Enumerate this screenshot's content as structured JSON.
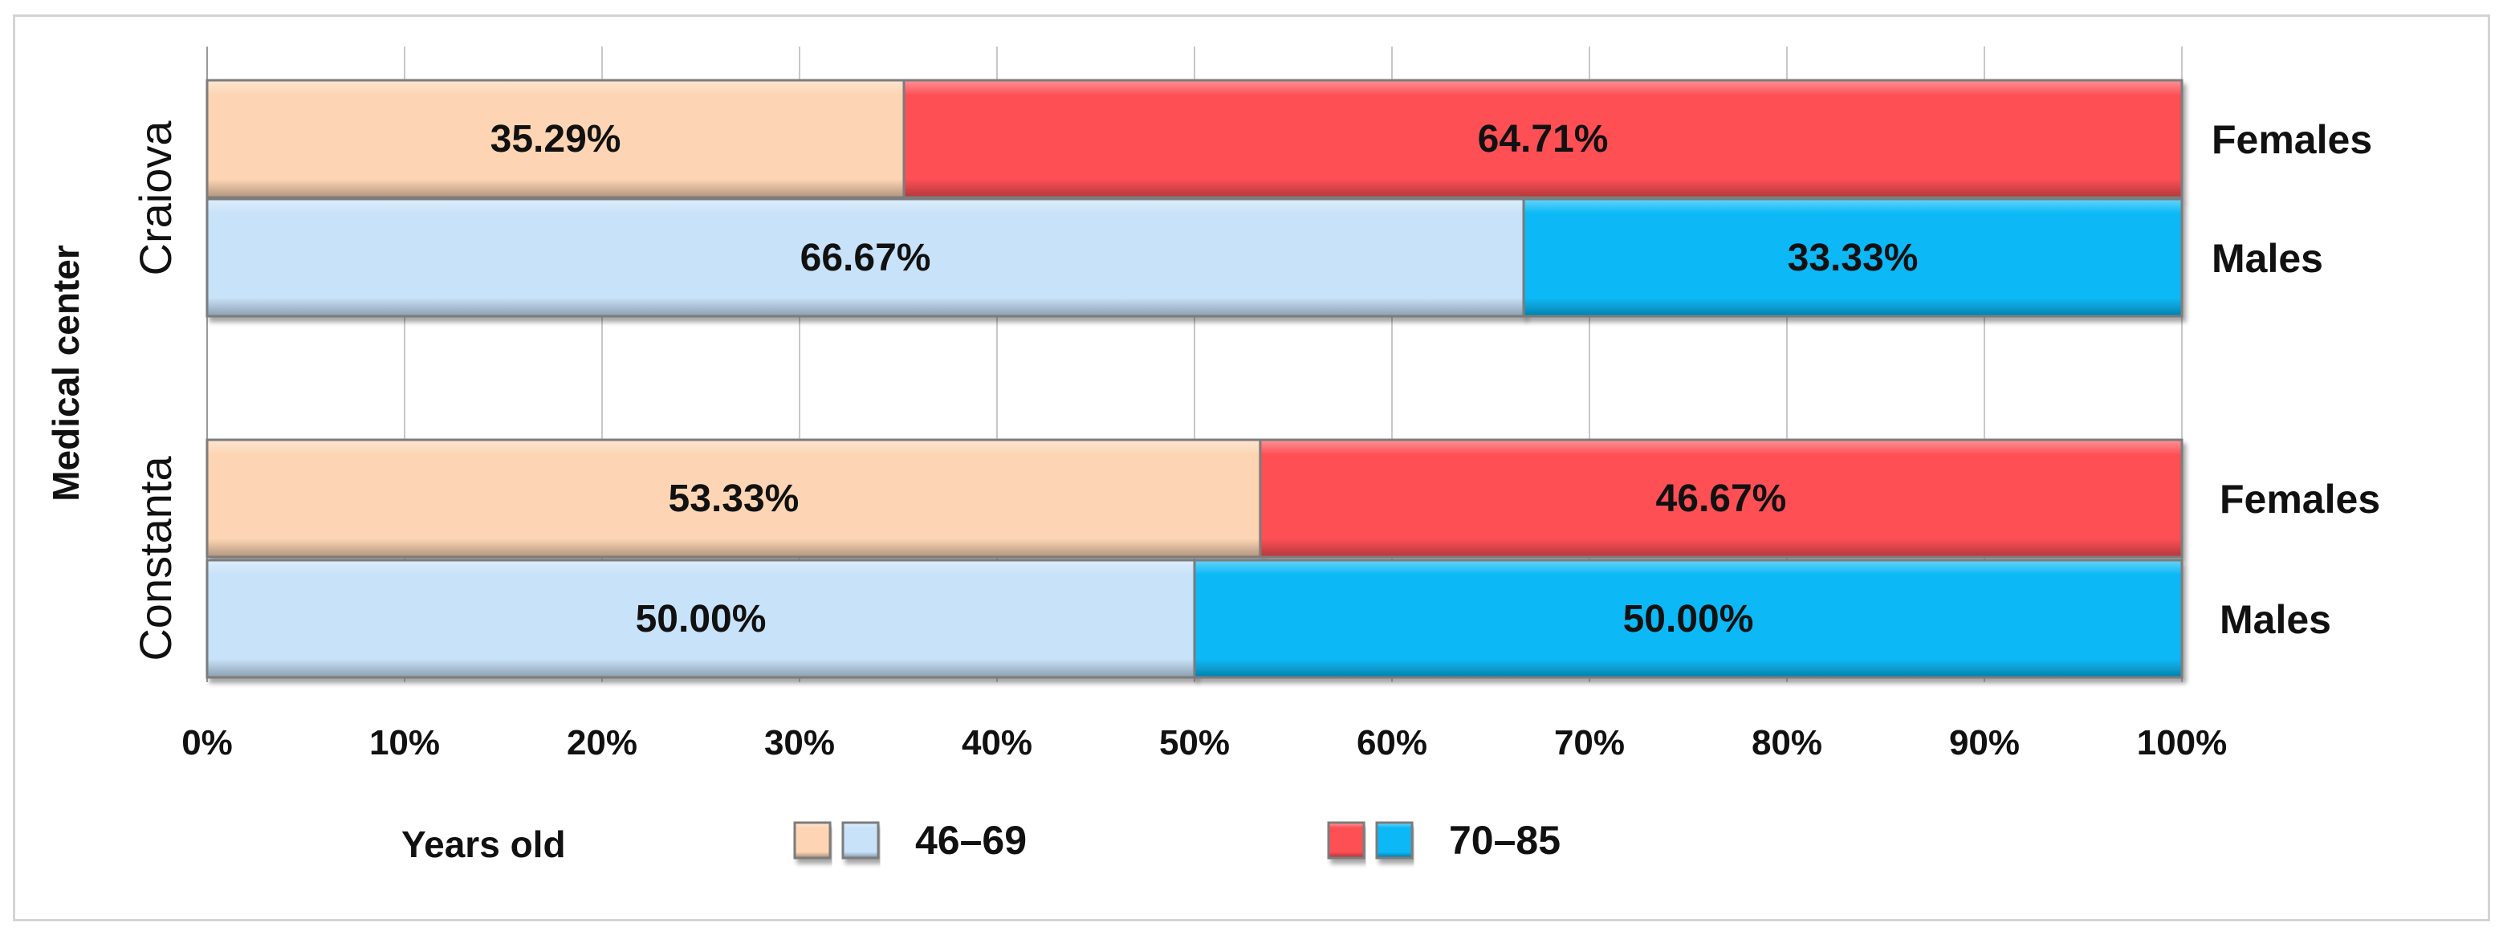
{
  "chart_data": {
    "type": "bar",
    "stacked": "percent",
    "orientation": "horizontal",
    "ylabel": "Medical center",
    "groups": [
      {
        "name": "Craiova",
        "bars": [
          {
            "label": "Females",
            "values": [
              35.29,
              64.71
            ],
            "value_labels": [
              "35.29%",
              "64.71%"
            ],
            "colors": [
              "#fdd5b4",
              "#fe4f55"
            ]
          },
          {
            "label": "Males",
            "values": [
              66.67,
              33.33
            ],
            "value_labels": [
              "66.67%",
              "33.33%"
            ],
            "colors": [
              "#c8e2f9",
              "#08b8f6"
            ]
          }
        ]
      },
      {
        "name": "Constanta",
        "bars": [
          {
            "label": "Females",
            "values": [
              53.33,
              46.67
            ],
            "value_labels": [
              "53.33%",
              "46.67%"
            ],
            "colors": [
              "#fdd5b4",
              "#fe4f55"
            ]
          },
          {
            "label": "Males",
            "values": [
              50.0,
              50.0
            ],
            "value_labels": [
              "50.00%",
              "50.00%"
            ],
            "colors": [
              "#c8e2f9",
              "#08b8f6"
            ]
          }
        ]
      }
    ],
    "xlim": [
      0,
      100
    ],
    "xticks": [
      0,
      10,
      20,
      30,
      40,
      50,
      60,
      70,
      80,
      90,
      100
    ],
    "xtick_labels": [
      "0%",
      "10%",
      "20%",
      "30%",
      "40%",
      "50%",
      "60%",
      "70%",
      "80%",
      "90%",
      "100%"
    ],
    "grid": true,
    "legend": {
      "title": "Years old",
      "position": "bottom",
      "entries": [
        {
          "label": "46–69",
          "colors": [
            "#fdd5b4",
            "#c8e2f9"
          ]
        },
        {
          "label": "70–85",
          "colors": [
            "#fe4f55",
            "#08b8f6"
          ]
        }
      ]
    }
  }
}
